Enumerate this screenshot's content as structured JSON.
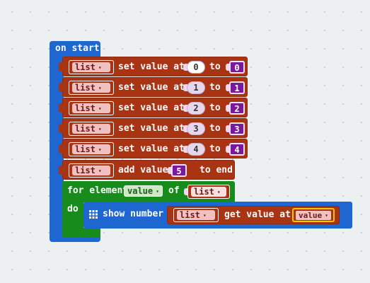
{
  "on_start": {
    "label": "on start"
  },
  "set_rows": [
    {
      "list_var": "list",
      "action": "set value at",
      "index": "0",
      "to": "to",
      "value": "0"
    },
    {
      "list_var": "list",
      "action": "set value at",
      "index": "1",
      "to": "to",
      "value": "1"
    },
    {
      "list_var": "list",
      "action": "set value at",
      "index": "2",
      "to": "to",
      "value": "2"
    },
    {
      "list_var": "list",
      "action": "set value at",
      "index": "3",
      "to": "to",
      "value": "3"
    },
    {
      "list_var": "list",
      "action": "set value at",
      "index": "4",
      "to": "to",
      "value": "4"
    }
  ],
  "add_row": {
    "list_var": "list",
    "action": "add value",
    "value": "5",
    "suffix": "to end"
  },
  "for_loop": {
    "label": "for element",
    "var": "value",
    "of": "of",
    "list_var": "list",
    "do": "do"
  },
  "show_number": {
    "label": "show number",
    "list_var": "list",
    "get_label": "get value at",
    "index_var": "value"
  },
  "dropdown_glyph": "▾",
  "colors": {
    "events_blue": "#1e66d0",
    "arrays_red": "#a93414",
    "loops_green": "#178c1d",
    "math_purple": "#7a1a9a"
  }
}
